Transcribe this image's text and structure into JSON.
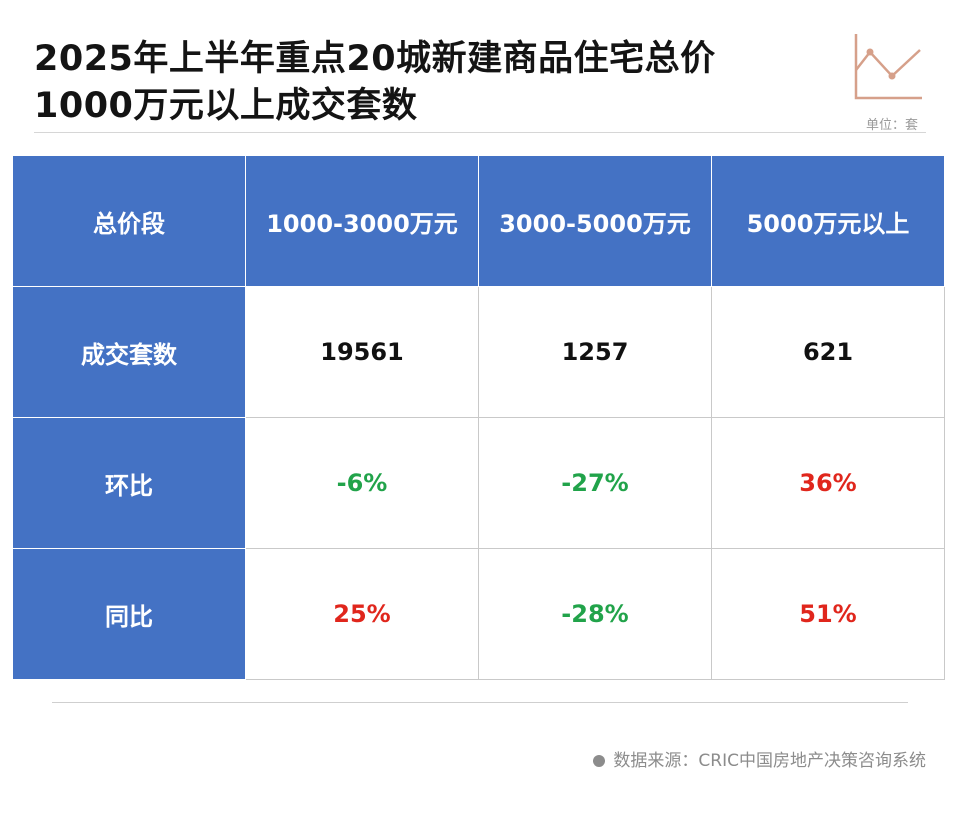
{
  "title_lines": [
    "2025年上半年重点20城新建商品住宅总价",
    "1000万元以上成交套数"
  ],
  "unit": "单位：套",
  "source": "数据来源：CRIC中国房地产决策咨询系统",
  "colors": {
    "header_bg": "#4472c4",
    "negative": "#21a34a",
    "positive": "#e0261c",
    "accent_icon": "#d6a08a"
  },
  "icon": "line-chart-icon",
  "chart_data": {
    "type": "table",
    "columns": [
      "总价段",
      "1000-3000万元",
      "3000-5000万元",
      "5000万元以上"
    ],
    "rows": [
      {
        "label": "成交套数",
        "values": [
          "19561",
          "1257",
          "621"
        ]
      },
      {
        "label": "环比",
        "values": [
          "-6%",
          "-27%",
          "36%"
        ]
      },
      {
        "label": "同比",
        "values": [
          "25%",
          "-28%",
          "51%"
        ]
      }
    ]
  }
}
